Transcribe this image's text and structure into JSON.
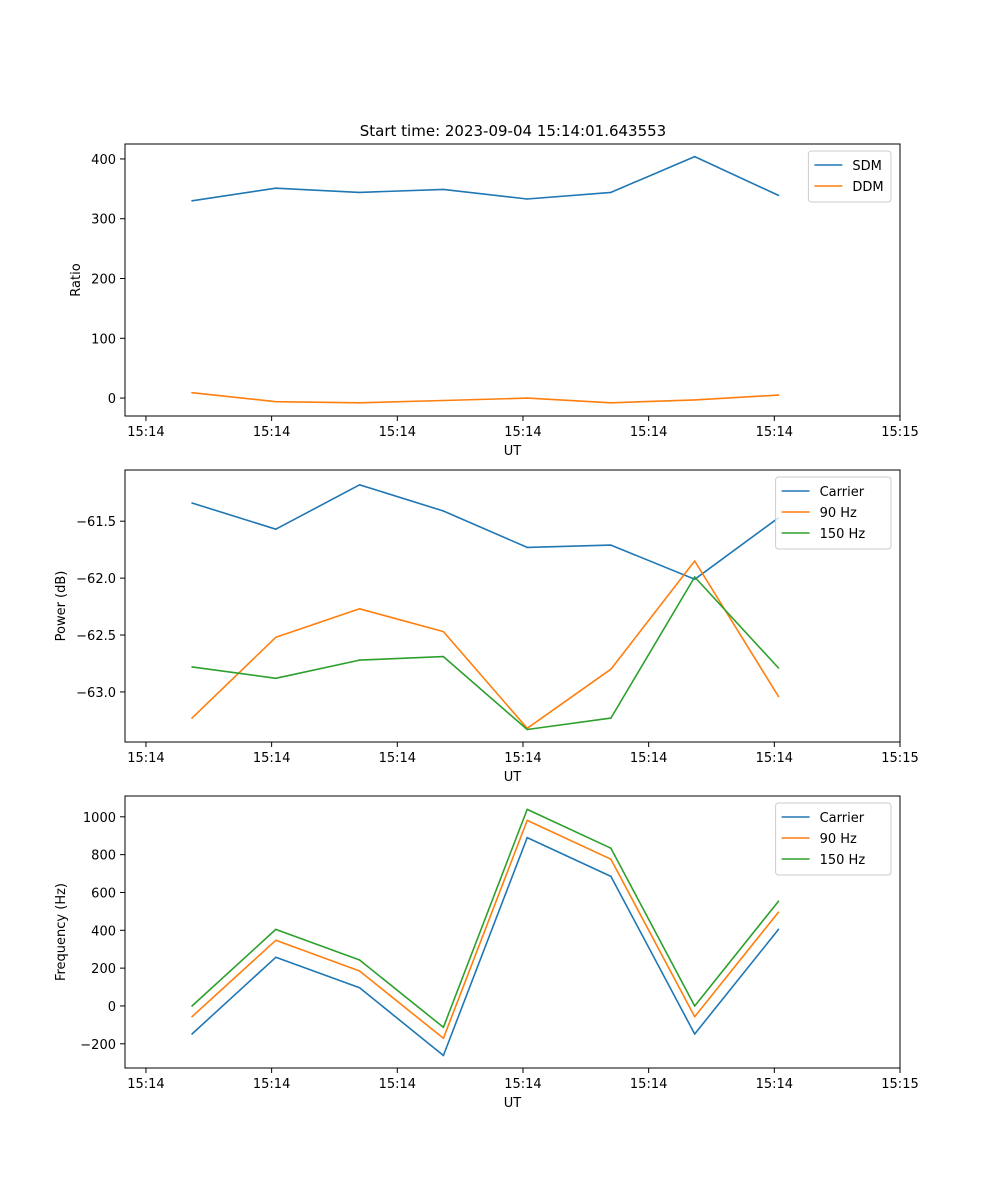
{
  "figure_title": "Start time: 2023-09-04 15:14:01.643553",
  "colors": {
    "blue": "#1f77b4",
    "orange": "#ff7f0e",
    "green": "#2ca02c"
  },
  "chart_data": [
    {
      "type": "line",
      "title": "Start time: 2023-09-04 15:14:01.643553",
      "xlabel": "UT",
      "ylabel": "Ratio",
      "x": [
        1,
        2,
        3,
        4,
        5,
        6,
        7,
        8
      ],
      "xlim": [
        0.2,
        9.45
      ],
      "xticks": [
        0.45,
        1.95,
        3.45,
        4.95,
        6.45,
        7.95,
        9.45
      ],
      "xtick_labels": [
        "15:14",
        "15:14",
        "15:14",
        "15:14",
        "15:14",
        "15:14",
        "15:15"
      ],
      "ylim": [
        -30,
        425
      ],
      "yticks": [
        0,
        100,
        200,
        300,
        400
      ],
      "ytick_labels": [
        "0",
        "100",
        "200",
        "300",
        "400"
      ],
      "legend": "top-right",
      "series": [
        {
          "name": "SDM",
          "color": "#1f77b4",
          "values": [
            330,
            351,
            344,
            349,
            333,
            344,
            404,
            339
          ]
        },
        {
          "name": "DDM",
          "color": "#ff7f0e",
          "values": [
            9,
            -6,
            -8,
            -4,
            0,
            -8,
            -3,
            5
          ]
        }
      ]
    },
    {
      "type": "line",
      "title": "",
      "xlabel": "UT",
      "ylabel": "Power (dB)",
      "x": [
        1,
        2,
        3,
        4,
        5,
        6,
        7,
        8
      ],
      "xlim": [
        0.2,
        9.45
      ],
      "xticks": [
        0.45,
        1.95,
        3.45,
        4.95,
        6.45,
        7.95,
        9.45
      ],
      "xtick_labels": [
        "15:14",
        "15:14",
        "15:14",
        "15:14",
        "15:14",
        "15:14",
        "15:15"
      ],
      "ylim": [
        -63.44,
        -61.05
      ],
      "yticks": [
        -61.5,
        -62.0,
        -62.5,
        -63.0
      ],
      "ytick_labels": [
        "−61.5",
        "−62.0",
        "−62.5",
        "−63.0"
      ],
      "legend": "top-right",
      "series": [
        {
          "name": "Carrier",
          "color": "#1f77b4",
          "values": [
            -61.34,
            -61.57,
            -61.18,
            -61.41,
            -61.73,
            -61.71,
            -62.01,
            -61.47
          ]
        },
        {
          "name": "90 Hz",
          "color": "#ff7f0e",
          "values": [
            -63.23,
            -62.52,
            -62.27,
            -62.47,
            -63.32,
            -62.8,
            -61.85,
            -63.04
          ]
        },
        {
          "name": "150 Hz",
          "color": "#2ca02c",
          "values": [
            -62.78,
            -62.88,
            -62.72,
            -62.69,
            -63.33,
            -63.23,
            -61.99,
            -62.79
          ]
        }
      ]
    },
    {
      "type": "line",
      "title": "",
      "xlabel": "UT",
      "ylabel": "Frequency (Hz)",
      "x": [
        1,
        2,
        3,
        4,
        5,
        6,
        7,
        8
      ],
      "xlim": [
        0.2,
        9.45
      ],
      "xticks": [
        0.45,
        1.95,
        3.45,
        4.95,
        6.45,
        7.95,
        9.45
      ],
      "xtick_labels": [
        "15:14",
        "15:14",
        "15:14",
        "15:14",
        "15:14",
        "15:14",
        "15:15"
      ],
      "ylim": [
        -328,
        1110
      ],
      "yticks": [
        1000,
        800,
        600,
        400,
        200,
        0,
        -200
      ],
      "ytick_labels": [
        "1000",
        "800",
        "600",
        "400",
        "200",
        "0",
        "−200"
      ],
      "legend": "top-right",
      "series": [
        {
          "name": "Carrier",
          "color": "#1f77b4",
          "values": [
            -148,
            257,
            96,
            -262,
            890,
            685,
            -148,
            405
          ]
        },
        {
          "name": "90 Hz",
          "color": "#ff7f0e",
          "values": [
            -57,
            347,
            185,
            -171,
            981,
            776,
            -57,
            496
          ]
        },
        {
          "name": "150 Hz",
          "color": "#2ca02c",
          "values": [
            0,
            405,
            243,
            -113,
            1039,
            834,
            0,
            554
          ]
        }
      ]
    }
  ]
}
